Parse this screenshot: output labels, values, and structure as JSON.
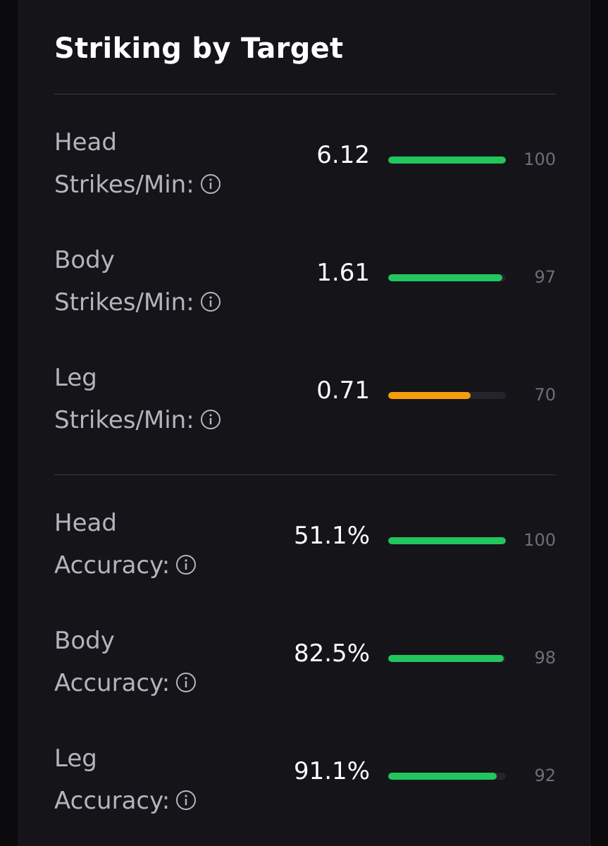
{
  "section": {
    "title": "Striking by Target"
  },
  "colors": {
    "good": "#22c55e",
    "mid": "#f59e0b",
    "track": "#24242b"
  },
  "rows": [
    {
      "line1": "Head",
      "line2": "Strikes/Min:",
      "value": "6.12",
      "percentile": "100",
      "fill_percent": 100,
      "color": "#22c55e"
    },
    {
      "line1": "Body",
      "line2": "Strikes/Min:",
      "value": "1.61",
      "percentile": "97",
      "fill_percent": 97,
      "color": "#22c55e"
    },
    {
      "line1": "Leg",
      "line2": "Strikes/Min:",
      "value": "0.71",
      "percentile": "70",
      "fill_percent": 70,
      "color": "#f59e0b"
    },
    {
      "line1": "Head",
      "line2": "Accuracy:",
      "value": "51.1%",
      "percentile": "100",
      "fill_percent": 100,
      "color": "#22c55e"
    },
    {
      "line1": "Body",
      "line2": "Accuracy:",
      "value": "82.5%",
      "percentile": "98",
      "fill_percent": 98,
      "color": "#22c55e"
    },
    {
      "line1": "Leg",
      "line2": "Accuracy:",
      "value": "91.1%",
      "percentile": "92",
      "fill_percent": 92,
      "color": "#22c55e"
    }
  ]
}
